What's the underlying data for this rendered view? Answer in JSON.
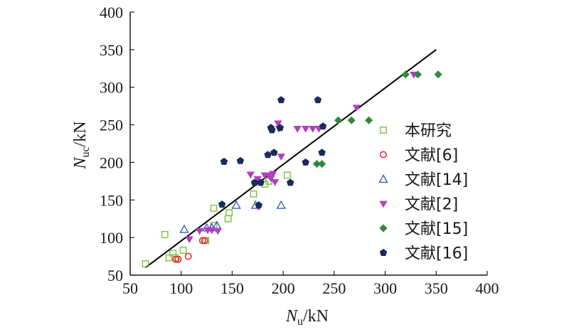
{
  "chart_data": {
    "type": "scatter",
    "xlabel": {
      "main": "N",
      "sub": "u",
      "unit": "/kN"
    },
    "ylabel": {
      "main": "N",
      "sub": "uc",
      "unit": "/kN"
    },
    "xlim": [
      50,
      400
    ],
    "ylim": [
      50,
      400
    ],
    "x_ticks": [
      "50",
      "100",
      "150",
      "200",
      "250",
      "300",
      "350",
      "400"
    ],
    "y_ticks": [
      "50",
      "100",
      "150",
      "200",
      "250",
      "300",
      "350",
      "400"
    ],
    "legend_position": "right",
    "fit_line": {
      "x": [
        65,
        350
      ],
      "y": [
        60,
        350
      ],
      "color": "#000000"
    },
    "series": [
      {
        "name": "本研究",
        "marker": "square",
        "color": "#7ac142",
        "points": [
          [
            65,
            65
          ],
          [
            84,
            104
          ],
          [
            88,
            73
          ],
          [
            92,
            79
          ],
          [
            94,
            73
          ],
          [
            102,
            83
          ],
          [
            124,
            96
          ],
          [
            132,
            139
          ],
          [
            132,
            116
          ],
          [
            146,
            125
          ],
          [
            147,
            133
          ],
          [
            171,
            158
          ],
          [
            182,
            171
          ],
          [
            186,
            175
          ],
          [
            204,
            183
          ]
        ]
      },
      {
        "name": "文献[6]",
        "marker": "circle",
        "color": "#e03030",
        "points": [
          [
            95,
            71
          ],
          [
            97,
            71
          ],
          [
            107,
            75
          ],
          [
            121,
            96
          ],
          [
            123,
            96
          ]
        ]
      },
      {
        "name": "文献[14]",
        "marker": "triangle-up",
        "color": "#3a5fb0",
        "points": [
          [
            103,
            111
          ],
          [
            125,
            113
          ],
          [
            130,
            113
          ],
          [
            135,
            116
          ],
          [
            154,
            143
          ],
          [
            173,
            143
          ],
          [
            198,
            143
          ]
        ]
      },
      {
        "name": "文献[2]",
        "marker": "triangle-down",
        "color": "#b040c0",
        "points": [
          [
            108,
            98
          ],
          [
            118,
            109
          ],
          [
            126,
            110
          ],
          [
            130,
            110
          ],
          [
            136,
            109
          ],
          [
            168,
            184
          ],
          [
            175,
            178
          ],
          [
            176,
            141
          ],
          [
            182,
            183
          ],
          [
            186,
            183
          ],
          [
            188,
            179
          ],
          [
            190,
            185
          ],
          [
            192,
            174
          ],
          [
            195,
            252
          ],
          [
            196,
            245
          ],
          [
            198,
            208
          ],
          [
            214,
            245
          ],
          [
            222,
            245
          ],
          [
            229,
            245
          ],
          [
            235,
            245
          ],
          [
            272,
            273
          ],
          [
            328,
            317
          ]
        ]
      },
      {
        "name": "文献[15]",
        "marker": "diamond",
        "color": "#2e8b3a",
        "points": [
          [
            233,
            198
          ],
          [
            238,
            198
          ],
          [
            254,
            256
          ],
          [
            267,
            256
          ],
          [
            284,
            256
          ],
          [
            320,
            317
          ],
          [
            332,
            317
          ],
          [
            352,
            317
          ]
        ]
      },
      {
        "name": "文献[16]",
        "marker": "pentagon",
        "color": "#1c2a5c",
        "points": [
          [
            140,
            144
          ],
          [
            142,
            201
          ],
          [
            158,
            202
          ],
          [
            172,
            173
          ],
          [
            176,
            143
          ],
          [
            178,
            173
          ],
          [
            185,
            210
          ],
          [
            188,
            246
          ],
          [
            189,
            243
          ],
          [
            191,
            213
          ],
          [
            197,
            246
          ],
          [
            198,
            283
          ],
          [
            207,
            173
          ],
          [
            222,
            200
          ],
          [
            234,
            283
          ],
          [
            238,
            213
          ],
          [
            239,
            248
          ]
        ]
      }
    ]
  }
}
